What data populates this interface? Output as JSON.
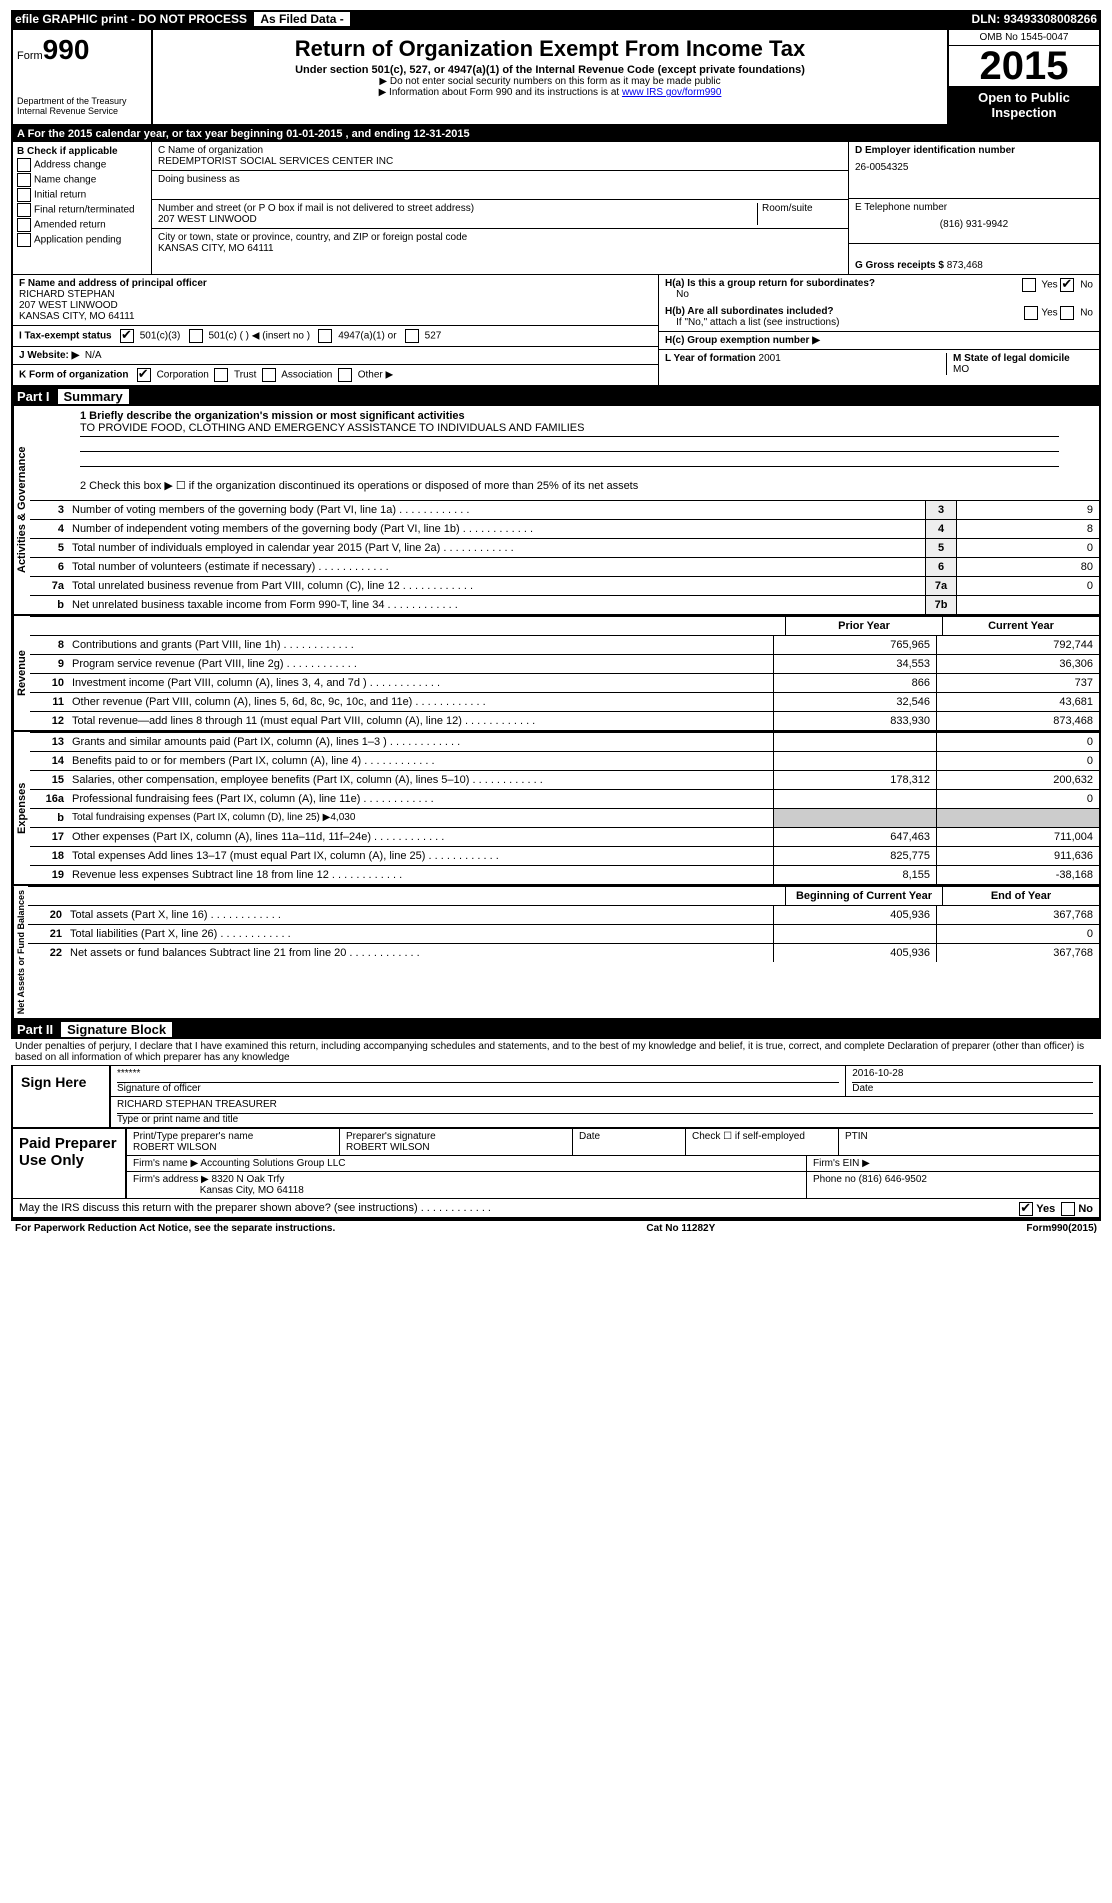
{
  "top": {
    "efile": "efile GRAPHIC print - DO NOT PROCESS",
    "filed": "As Filed Data -",
    "dln_lbl": "DLN:",
    "dln": "93493308008266"
  },
  "hdr": {
    "form_lbl": "Form",
    "form_no": "990",
    "title": "Return of Organization Exempt From Income Tax",
    "sub": "Under section 501(c), 527, or 4947(a)(1) of the Internal Revenue Code (except private foundations)",
    "note1": "▶ Do not enter social security numbers on this form as it may be made public",
    "note2": "▶ Information about Form 990 and its instructions is at ",
    "link": "www IRS gov/form990",
    "dept": "Department of the Treasury",
    "irs": "Internal Revenue Service",
    "omb": "OMB No 1545-0047",
    "year": "2015",
    "open1": "Open to Public",
    "open2": "Inspection"
  },
  "rowA": "A  For the 2015 calendar year, or tax year beginning 01-01-2015     , and ending 12-31-2015",
  "B": {
    "hdr": "B  Check if applicable",
    "items": [
      "Address change",
      "Name change",
      "Initial return",
      "Final return/terminated",
      "Amended return",
      "Application pending"
    ]
  },
  "C": {
    "name_lbl": "C  Name of organization",
    "name": "REDEMPTORIST SOCIAL SERVICES CENTER INC",
    "dba_lbl": "Doing business as",
    "dba": "",
    "street_lbl": "Number and street (or P O box if mail is not delivered to street address)",
    "room_lbl": "Room/suite",
    "street": "207 WEST LINWOOD",
    "city_lbl": "City or town, state or province, country, and ZIP or foreign postal code",
    "city": "KANSAS CITY, MO  64111"
  },
  "D": {
    "lbl": "D  Employer identification number",
    "val": "26-0054325"
  },
  "E": {
    "lbl": "E  Telephone number",
    "val": "(816) 931-9942"
  },
  "G": {
    "lbl": "G  Gross receipts $",
    "val": "873,468"
  },
  "F": {
    "lbl": "F  Name and address of principal officer",
    "l1": "RICHARD STEPHAN",
    "l2": "207 WEST LINWOOD",
    "l3": "KANSAS CITY, MO  64111"
  },
  "I": {
    "lbl": "I  Tax-exempt status",
    "o1": "501(c)(3)",
    "o2": "501(c) (  ) ◀ (insert no )",
    "o3": "4947(a)(1) or",
    "o4": "527"
  },
  "J": {
    "lbl": "J  Website: ▶",
    "val": "N/A"
  },
  "K": {
    "lbl": "K  Form of organization",
    "o1": "Corporation",
    "o2": "Trust",
    "o3": "Association",
    "o4": "Other ▶"
  },
  "H": {
    "a_lbl": "H(a)  Is this a group return for subordinates?",
    "a_val": "No",
    "yes": "Yes",
    "no": "No",
    "b_lbl": "H(b)  Are all subordinates included?",
    "b_note": "If \"No,\" attach a list (see instructions)",
    "c_lbl": "H(c)   Group exemption number ▶"
  },
  "L": {
    "lbl": "L  Year of formation",
    "val": "2001"
  },
  "M": {
    "lbl": "M  State of legal domicile",
    "val": "MO"
  },
  "partI": {
    "hdr": "Part I",
    "title": "Summary",
    "q1": "1 Briefly describe the organization's mission or most significant activities",
    "mission": "TO PROVIDE FOOD, CLOTHING AND EMERGENCY ASSISTANCE TO INDIVIDUALS AND FAMILIES",
    "q2": "2  Check this box ▶ ☐ if the organization discontinued its operations or disposed of more than 25% of its net assets",
    "tabs": {
      "ag": "Activities & Governance",
      "rev": "Revenue",
      "exp": "Expenses",
      "na": "Net Assets or Fund Balances"
    },
    "lines_ag": [
      {
        "n": "3",
        "d": "Number of voting members of the governing body (Part VI, line 1a)",
        "box": "3",
        "v": "9"
      },
      {
        "n": "4",
        "d": "Number of independent voting members of the governing body (Part VI, line 1b)",
        "box": "4",
        "v": "8"
      },
      {
        "n": "5",
        "d": "Total number of individuals employed in calendar year 2015 (Part V, line 2a)",
        "box": "5",
        "v": "0"
      },
      {
        "n": "6",
        "d": "Total number of volunteers (estimate if necessary)",
        "box": "6",
        "v": "80"
      },
      {
        "n": "7a",
        "d": "Total unrelated business revenue from Part VIII, column (C), line 12",
        "box": "7a",
        "v": "0"
      },
      {
        "n": "b",
        "d": "Net unrelated business taxable income from Form 990-T, line 34",
        "box": "7b",
        "v": ""
      }
    ],
    "col_prior": "Prior Year",
    "col_curr": "Current Year",
    "lines_rev": [
      {
        "n": "8",
        "d": "Contributions and grants (Part VIII, line 1h)",
        "p": "765,965",
        "c": "792,744"
      },
      {
        "n": "9",
        "d": "Program service revenue (Part VIII, line 2g)",
        "p": "34,553",
        "c": "36,306"
      },
      {
        "n": "10",
        "d": "Investment income (Part VIII, column (A), lines 3, 4, and 7d )",
        "p": "866",
        "c": "737"
      },
      {
        "n": "11",
        "d": "Other revenue (Part VIII, column (A), lines 5, 6d, 8c, 9c, 10c, and 11e)",
        "p": "32,546",
        "c": "43,681"
      },
      {
        "n": "12",
        "d": "Total revenue—add lines 8 through 11 (must equal Part VIII, column (A), line 12)",
        "p": "833,930",
        "c": "873,468"
      }
    ],
    "lines_exp": [
      {
        "n": "13",
        "d": "Grants and similar amounts paid (Part IX, column (A), lines 1–3 )",
        "p": "",
        "c": "0"
      },
      {
        "n": "14",
        "d": "Benefits paid to or for members (Part IX, column (A), line 4)",
        "p": "",
        "c": "0"
      },
      {
        "n": "15",
        "d": "Salaries, other compensation, employee benefits (Part IX, column (A), lines 5–10)",
        "p": "178,312",
        "c": "200,632"
      },
      {
        "n": "16a",
        "d": "Professional fundraising fees (Part IX, column (A), line 11e)",
        "p": "",
        "c": "0"
      },
      {
        "n": "b",
        "d": "Total fundraising expenses (Part IX, column (D), line 25) ▶4,030",
        "p": "-",
        "c": "-"
      },
      {
        "n": "17",
        "d": "Other expenses (Part IX, column (A), lines 11a–11d, 11f–24e)",
        "p": "647,463",
        "c": "711,004"
      },
      {
        "n": "18",
        "d": "Total expenses Add lines 13–17 (must equal Part IX, column (A), line 25)",
        "p": "825,775",
        "c": "911,636"
      },
      {
        "n": "19",
        "d": "Revenue less expenses Subtract line 18 from line 12",
        "p": "8,155",
        "c": "-38,168"
      }
    ],
    "col_beg": "Beginning of Current Year",
    "col_end": "End of Year",
    "lines_na": [
      {
        "n": "20",
        "d": "Total assets (Part X, line 16)",
        "p": "405,936",
        "c": "367,768"
      },
      {
        "n": "21",
        "d": "Total liabilities (Part X, line 26)",
        "p": "",
        "c": "0"
      },
      {
        "n": "22",
        "d": "Net assets or fund balances Subtract line 21 from line 20",
        "p": "405,936",
        "c": "367,768"
      }
    ]
  },
  "partII": {
    "hdr": "Part II",
    "title": "Signature Block",
    "perjury": "Under penalties of perjury, I declare that I have examined this return, including accompanying schedules and statements, and to the best of my knowledge and belief, it is true, correct, and complete Declaration of preparer (other than officer) is based on all information of which preparer has any knowledge",
    "sign_lbl": "Sign Here",
    "sig_stars": "******",
    "sig_of": "Signature of officer",
    "date_lbl": "Date",
    "date": "2016-10-28",
    "name": "RICHARD STEPHAN TREASURER",
    "name_lbl": "Type or print name and title",
    "paid_lbl": "Paid Preparer Use Only",
    "prep_name_lbl": "Print/Type preparer's name",
    "prep_name": "ROBERT WILSON",
    "prep_sig_lbl": "Preparer's signature",
    "prep_sig": "ROBERT WILSON",
    "prep_date_lbl": "Date",
    "self_lbl": "Check ☐ if self-employed",
    "ptin_lbl": "PTIN",
    "firm_name_lbl": "Firm's name    ▶",
    "firm_name": "Accounting Solutions Group LLC",
    "ein_lbl": "Firm's EIN ▶",
    "firm_addr_lbl": "Firm's address ▶",
    "firm_addr1": "8320 N Oak Trfy",
    "firm_addr2": "Kansas City, MO  64118",
    "phone_lbl": "Phone no",
    "phone": "(816) 646-9502",
    "may_discuss": "May the IRS discuss this return with the preparer shown above? (see instructions)",
    "paperwork": "For Paperwork Reduction Act Notice, see the separate instructions.",
    "cat": "Cat No 11282Y",
    "formno": "Form990(2015)"
  }
}
